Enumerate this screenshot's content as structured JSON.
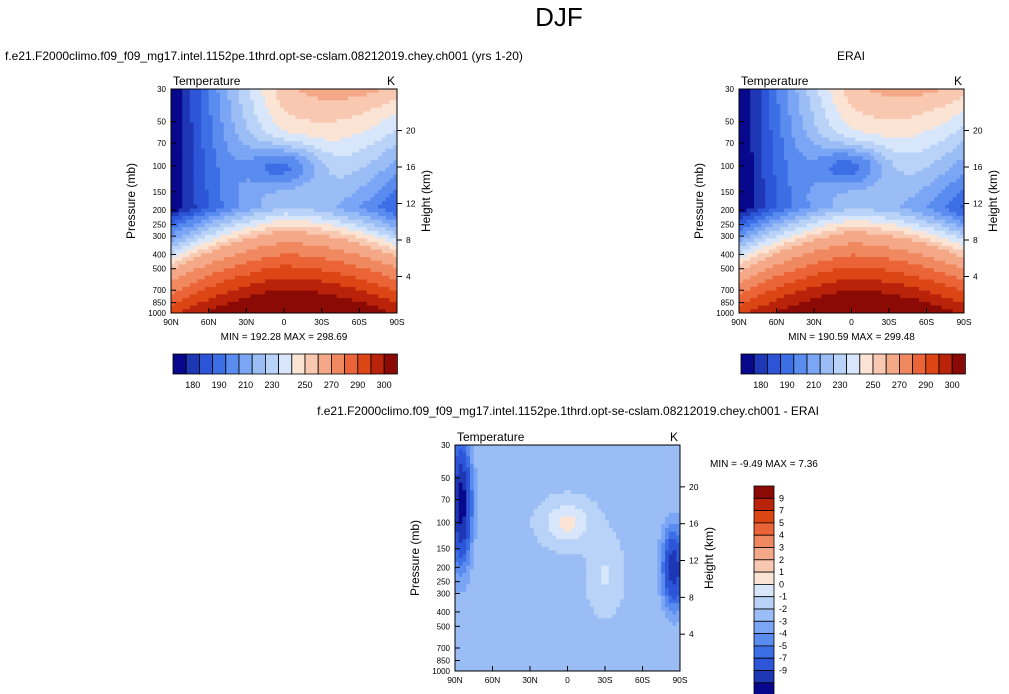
{
  "figure": {
    "title": "DJF"
  },
  "chart_data": [
    {
      "type": "heatmap",
      "id": "model",
      "title": "f.e21.F2000climo.f09_f09_mg17.intel.1152pe.1thrd.opt-se-cslam.08212019.chey.ch001 (yrs 1-20)",
      "variable": "Temperature",
      "units": "K",
      "xlabel": "",
      "ylabel": "Pressure (mb)",
      "ylabel_right": "Height (km)",
      "x_ticks": [
        "90N",
        "60N",
        "30N",
        "0",
        "30S",
        "60S",
        "90S"
      ],
      "y_ticks": [
        "30",
        "50",
        "70",
        "100",
        "150",
        "200",
        "250",
        "300",
        "400",
        "500",
        "700",
        "850",
        "1000"
      ],
      "y_ticks_right": [
        "4",
        "8",
        "12",
        "16",
        "20"
      ],
      "y_scale": "log",
      "xlim": [
        90,
        -90
      ],
      "ylim": [
        30,
        1000
      ],
      "stats": "MIN = 192.28   MAX = 298.69",
      "min": 192.28,
      "max": 298.69,
      "contour_levels": [
        180,
        185,
        190,
        195,
        200,
        205,
        210,
        215,
        220,
        225,
        230,
        240,
        250,
        260,
        270,
        280,
        290,
        300
      ],
      "colorbar_labels": [
        "180",
        "190",
        "210",
        "230",
        "250",
        "270",
        "290",
        "300"
      ]
    },
    {
      "type": "heatmap",
      "id": "obs",
      "title": "ERAI",
      "variable": "Temperature",
      "units": "K",
      "xlabel": "",
      "ylabel": "Pressure (mb)",
      "ylabel_right": "Height (km)",
      "x_ticks": [
        "90N",
        "60N",
        "30N",
        "0",
        "30S",
        "60S",
        "90S"
      ],
      "y_ticks": [
        "30",
        "50",
        "70",
        "100",
        "150",
        "200",
        "250",
        "300",
        "400",
        "500",
        "700",
        "850",
        "1000"
      ],
      "y_ticks_right": [
        "4",
        "8",
        "12",
        "16",
        "20"
      ],
      "y_scale": "log",
      "xlim": [
        90,
        -90
      ],
      "ylim": [
        30,
        1000
      ],
      "stats": "MIN = 190.59   MAX = 299.48",
      "min": 190.59,
      "max": 299.48,
      "contour_levels": [
        180,
        185,
        190,
        195,
        200,
        205,
        210,
        215,
        220,
        225,
        230,
        240,
        250,
        260,
        270,
        280,
        290,
        300
      ],
      "colorbar_labels": [
        "180",
        "190",
        "210",
        "230",
        "250",
        "270",
        "290",
        "300"
      ]
    },
    {
      "type": "heatmap",
      "id": "diff",
      "title": "f.e21.F2000climo.f09_f09_mg17.intel.1152pe.1thrd.opt-se-cslam.08212019.chey.ch001 - ERAI",
      "variable": "Temperature",
      "units": "K",
      "xlabel": "",
      "ylabel": "Pressure (mb)",
      "ylabel_right": "Height (km)",
      "x_ticks": [
        "90N",
        "60N",
        "30N",
        "0",
        "30S",
        "60S",
        "90S"
      ],
      "y_ticks": [
        "30",
        "50",
        "70",
        "100",
        "150",
        "200",
        "250",
        "300",
        "400",
        "500",
        "700",
        "850",
        "1000"
      ],
      "y_ticks_right": [
        "4",
        "8",
        "12",
        "16",
        "20"
      ],
      "y_scale": "log",
      "xlim": [
        90,
        -90
      ],
      "ylim": [
        30,
        1000
      ],
      "stats": "MIN =  -9.49   MAX =  7.36",
      "min": -9.49,
      "max": 7.36,
      "contour_levels": [
        -9,
        -7,
        -5,
        -4,
        -3,
        -2,
        -1,
        0,
        1,
        2,
        3,
        4,
        5,
        7,
        9
      ],
      "colorbar_labels": [
        "9",
        "7",
        "5",
        "4",
        "3",
        "2",
        "1",
        "0",
        "-1",
        "-2",
        "-3",
        "-4",
        "-5",
        "-7",
        "-9"
      ]
    }
  ],
  "colors": {
    "abs_palette": [
      "#08088c",
      "#1e37b4",
      "#2d55d7",
      "#3c6ee6",
      "#5a8cf0",
      "#7ba5f5",
      "#9bbdf5",
      "#b9d2f8",
      "#d7e6fa",
      "#fbe4d4",
      "#f8c8b0",
      "#f5a887",
      "#f08860",
      "#eb6437",
      "#dc4614",
      "#b9230a",
      "#8c0a05"
    ],
    "diff_palette": [
      "#8c0a05",
      "#b9230a",
      "#dc4614",
      "#eb6437",
      "#f08860",
      "#f5a887",
      "#f8c8b0",
      "#fbe4d4",
      "#d7e6fa",
      "#b9d2f8",
      "#9bbdf5",
      "#7ba5f5",
      "#5a8cf0",
      "#3c6ee6",
      "#2d55d7",
      "#1e37b4",
      "#08088c"
    ]
  }
}
